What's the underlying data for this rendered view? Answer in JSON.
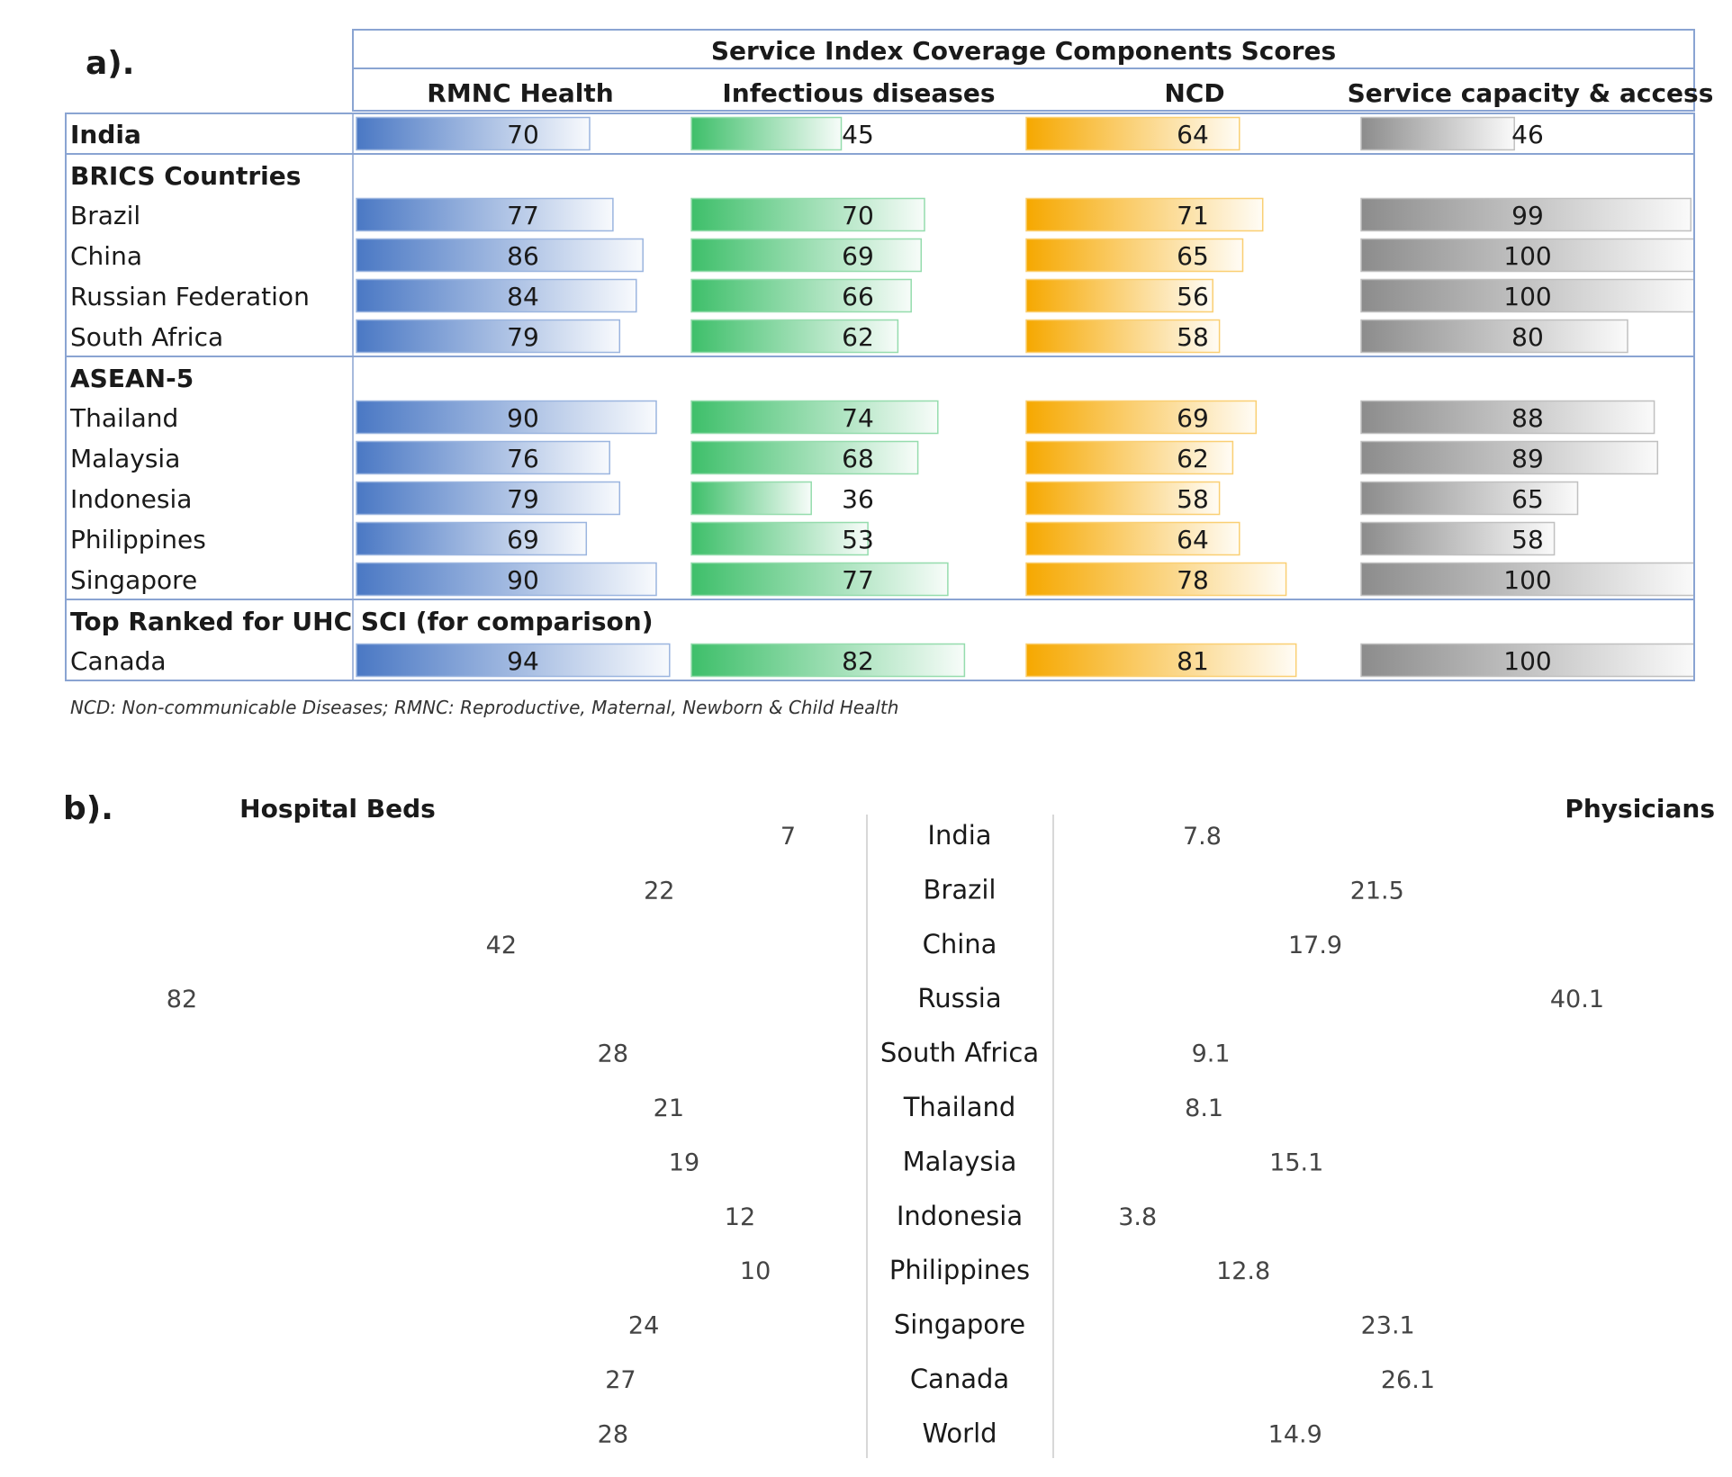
{
  "panel_a": {
    "label": "a).",
    "super_header": "Service Index Coverage Components Scores",
    "columns": [
      "RMNC Health",
      "Infectious diseases",
      "NCD",
      "Service capacity & access"
    ],
    "footnote": "NCD: Non-communicable Diseases; RMNC: Reproductive, Maternal, Newborn & Child Health",
    "colors": [
      "#4a78c4",
      "#3ebf6a",
      "#f6a800",
      "#8c8c8c"
    ]
  },
  "panel_b": {
    "label": "b).",
    "left_title": "Hospital Beds",
    "right_title": "Physicians",
    "icon_left": "bed-icon",
    "icon_right": "person-icon",
    "icon_color": "#2e5aa0"
  },
  "chart_data": [
    {
      "type": "table",
      "title": "Service Index Coverage Components Scores",
      "columns": [
        "RMNC Health",
        "Infectious diseases",
        "NCD",
        "Service capacity & access"
      ],
      "max": 100,
      "groups": [
        {
          "name": "",
          "rows": [
            {
              "label": "India",
              "values": [
                70,
                45,
                64,
                46
              ]
            }
          ]
        },
        {
          "name": "BRICS Countries",
          "rows": [
            {
              "label": "Brazil",
              "values": [
                77,
                70,
                71,
                99
              ]
            },
            {
              "label": "China",
              "values": [
                86,
                69,
                65,
                100
              ]
            },
            {
              "label": "Russian Federation",
              "values": [
                84,
                66,
                56,
                100
              ]
            },
            {
              "label": "South Africa",
              "values": [
                79,
                62,
                58,
                80
              ]
            }
          ]
        },
        {
          "name": "ASEAN-5",
          "rows": [
            {
              "label": "Thailand",
              "values": [
                90,
                74,
                69,
                88
              ]
            },
            {
              "label": "Malaysia",
              "values": [
                76,
                68,
                62,
                89
              ]
            },
            {
              "label": "Indonesia",
              "values": [
                79,
                36,
                58,
                65
              ]
            },
            {
              "label": "Philippines",
              "values": [
                69,
                53,
                64,
                58
              ]
            },
            {
              "label": "Singapore",
              "values": [
                90,
                77,
                78,
                100
              ]
            }
          ]
        },
        {
          "name": "Top Ranked for UHC SCI (for comparison)",
          "rows": [
            {
              "label": "Canada",
              "values": [
                94,
                82,
                81,
                100
              ]
            }
          ]
        }
      ]
    },
    {
      "type": "bar",
      "categories": [
        "India",
        "Brazil",
        "China",
        "Russia",
        "South Africa",
        "Thailand",
        "Malaysia",
        "Indonesia",
        "Philippines",
        "Singapore",
        "Canada",
        "World"
      ],
      "series": [
        {
          "name": "Hospital Beds",
          "values": [
            7,
            22,
            42,
            82,
            28,
            21,
            19,
            12,
            10,
            24,
            27,
            28
          ]
        },
        {
          "name": "Physicians",
          "values": [
            7.8,
            21.5,
            17.9,
            40.1,
            9.1,
            8.1,
            15.1,
            3.8,
            12.8,
            23.1,
            26.1,
            14.9
          ]
        }
      ],
      "beds_per_icon": 7,
      "physicians_per_icon": 7
    }
  ]
}
